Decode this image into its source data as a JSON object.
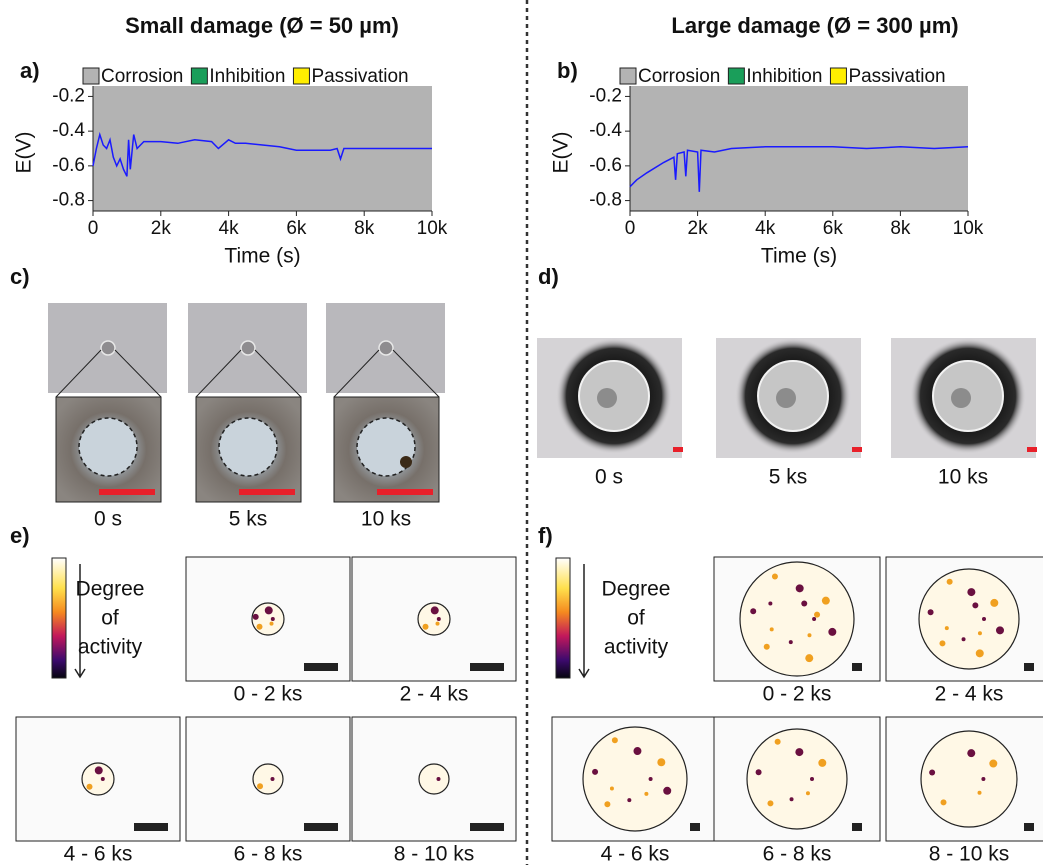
{
  "headings": [
    "Small damage (Ø = 50 µm)",
    "Large damage (Ø = 300 µm)"
  ],
  "chart_data": [
    {
      "type": "line",
      "panel": "a)",
      "color": "#1a1aff",
      "legend": [
        {
          "name": "Corrosion",
          "color": "#b3b3b3"
        },
        {
          "name": "Inhibition",
          "color": "#1a9e5a"
        },
        {
          "name": "Passivation",
          "color": "#ffee00"
        }
      ],
      "xlabel": "Time (s)",
      "ylabel": "E(V)",
      "xlim": [
        0,
        10000
      ],
      "ylim": [
        -0.86,
        -0.14
      ],
      "xticks": [
        0,
        {
          "value": 2000,
          "label": "2k"
        },
        {
          "value": 4000,
          "label": "4k"
        },
        {
          "value": 6000,
          "label": "6k"
        },
        {
          "value": 8000,
          "label": "8k"
        },
        {
          "value": 10000,
          "label": "10k"
        }
      ],
      "yticks": [
        -0.2,
        -0.4,
        -0.6,
        -0.8
      ],
      "x": [
        0,
        100,
        200,
        300,
        400,
        500,
        600,
        700,
        800,
        900,
        1000,
        1050,
        1100,
        1200,
        1300,
        1500,
        2000,
        2500,
        3000,
        3500,
        3700,
        4000,
        4200,
        4500,
        5000,
        5500,
        6000,
        6500,
        7000,
        7200,
        7300,
        7400,
        8000,
        9000,
        10000
      ],
      "values": [
        -0.6,
        -0.5,
        -0.42,
        -0.48,
        -0.5,
        -0.45,
        -0.55,
        -0.6,
        -0.56,
        -0.62,
        -0.66,
        -0.45,
        -0.62,
        -0.42,
        -0.5,
        -0.46,
        -0.46,
        -0.47,
        -0.45,
        -0.46,
        -0.5,
        -0.45,
        -0.47,
        -0.47,
        -0.48,
        -0.49,
        -0.51,
        -0.51,
        -0.51,
        -0.5,
        -0.56,
        -0.5,
        -0.5,
        -0.5,
        -0.5
      ]
    },
    {
      "type": "line",
      "panel": "b)",
      "color": "#1a1aff",
      "legend": [
        {
          "name": "Corrosion",
          "color": "#b3b3b3"
        },
        {
          "name": "Inhibition",
          "color": "#1a9e5a"
        },
        {
          "name": "Passivation",
          "color": "#ffee00"
        }
      ],
      "xlabel": "Time (s)",
      "ylabel": "E(V)",
      "xlim": [
        0,
        10000
      ],
      "ylim": [
        -0.86,
        -0.14
      ],
      "xticks": [
        0,
        {
          "value": 2000,
          "label": "2k"
        },
        {
          "value": 4000,
          "label": "4k"
        },
        {
          "value": 6000,
          "label": "6k"
        },
        {
          "value": 8000,
          "label": "8k"
        },
        {
          "value": 10000,
          "label": "10k"
        }
      ],
      "yticks": [
        -0.2,
        -0.4,
        -0.6,
        -0.8
      ],
      "x": [
        0,
        200,
        500,
        1000,
        1300,
        1350,
        1400,
        1600,
        1650,
        1700,
        2000,
        2050,
        2100,
        2500,
        3000,
        4000,
        5000,
        6000,
        7000,
        8000,
        9000,
        10000
      ],
      "values": [
        -0.72,
        -0.68,
        -0.64,
        -0.58,
        -0.55,
        -0.68,
        -0.53,
        -0.52,
        -0.66,
        -0.51,
        -0.52,
        -0.75,
        -0.51,
        -0.52,
        -0.5,
        -0.49,
        -0.49,
        -0.49,
        -0.5,
        -0.49,
        -0.5,
        -0.49
      ]
    }
  ],
  "photos": [
    {
      "panel": "c)",
      "labels": [
        "0 s",
        "5 ks",
        "10 ks"
      ]
    },
    {
      "panel": "d)",
      "labels": [
        "0 s",
        "5 ks",
        "10 ks"
      ]
    }
  ],
  "activity": [
    {
      "panel": "e)",
      "colorbar_label": [
        "Degree",
        "of",
        "activity"
      ],
      "labels": [
        "0 - 2 ks",
        "2 - 4 ks",
        "4 - 6 ks",
        "6 - 8 ks",
        "8 - 10 ks"
      ]
    },
    {
      "panel": "f)",
      "colorbar_label": [
        "Degree",
        "of",
        "activity"
      ],
      "labels": [
        "0 - 2 ks",
        "2 - 4 ks",
        "4 - 6 ks",
        "6 - 8 ks",
        "8 - 10 ks"
      ]
    }
  ]
}
